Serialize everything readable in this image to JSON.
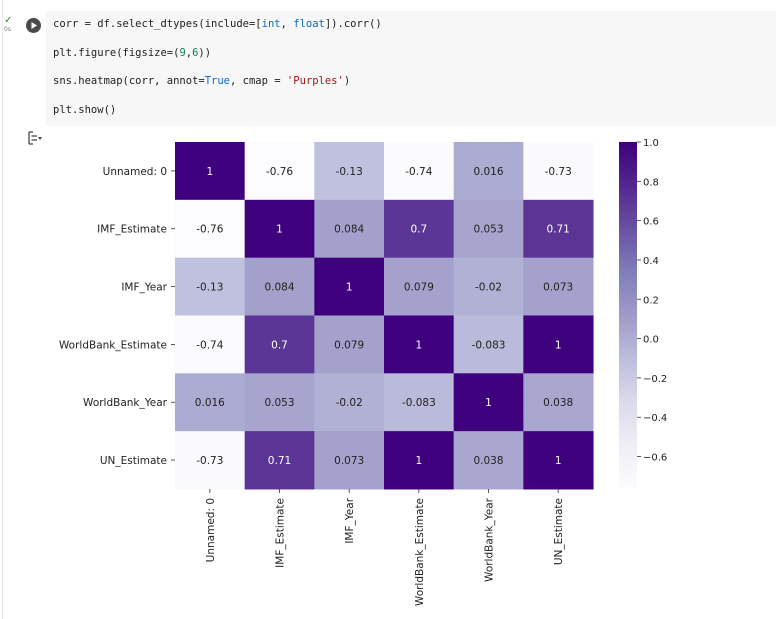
{
  "cell": {
    "status": "✓",
    "elapsed": "0s",
    "code": [
      [
        {
          "t": "corr = df.select_dtypes(include=["
        },
        {
          "t": "int",
          "c": "kw"
        },
        {
          "t": ", "
        },
        {
          "t": "float",
          "c": "kw"
        },
        {
          "t": "]).corr()"
        }
      ],
      [
        {
          "t": "plt.figure(figsize=("
        },
        {
          "t": "9",
          "c": "num"
        },
        {
          "t": ","
        },
        {
          "t": "6",
          "c": "num"
        },
        {
          "t": "))"
        }
      ],
      [
        {
          "t": "sns.heatmap(corr, annot="
        },
        {
          "t": "True",
          "c": "kw"
        },
        {
          "t": ", cmap = "
        },
        {
          "t": "'Purples'",
          "c": "str"
        },
        {
          "t": ")"
        }
      ],
      [
        {
          "t": "plt.show()"
        }
      ]
    ]
  },
  "output_toggle_icon": "output-collapse-icon",
  "chart_data": {
    "type": "heatmap",
    "cmap": "Purples",
    "labels": [
      "Unnamed: 0",
      "IMF_Estimate",
      "IMF_Year",
      "WorldBank_Estimate",
      "WorldBank_Year",
      "UN_Estimate"
    ],
    "values": [
      [
        1,
        -0.76,
        -0.13,
        -0.74,
        0.016,
        -0.73
      ],
      [
        -0.76,
        1,
        0.084,
        0.7,
        0.053,
        0.71
      ],
      [
        -0.13,
        0.084,
        1,
        0.079,
        -0.02,
        0.073
      ],
      [
        -0.74,
        0.7,
        0.079,
        1,
        -0.083,
        1
      ],
      [
        0.016,
        0.053,
        -0.02,
        -0.083,
        1,
        0.038
      ],
      [
        -0.73,
        0.71,
        0.073,
        1,
        0.038,
        1
      ]
    ],
    "annotations": [
      [
        "1",
        "-0.76",
        "-0.13",
        "-0.74",
        "0.016",
        "-0.73"
      ],
      [
        "-0.76",
        "1",
        "0.084",
        "0.7",
        "0.053",
        "0.71"
      ],
      [
        "-0.13",
        "0.084",
        "1",
        "0.079",
        "-0.02",
        "0.073"
      ],
      [
        "-0.74",
        "0.7",
        "0.079",
        "1",
        "-0.083",
        "1"
      ],
      [
        "0.016",
        "0.053",
        "-0.02",
        "-0.083",
        "1",
        "0.038"
      ],
      [
        "-0.73",
        "0.71",
        "0.073",
        "1",
        "0.038",
        "1"
      ]
    ],
    "vmin": -0.76,
    "vmax": 1,
    "colorbar_ticks": [
      "1.0",
      "0.8",
      "0.6",
      "0.4",
      "0.2",
      "0.0",
      "−0.2",
      "−0.4",
      "−0.6"
    ],
    "colorbar_tick_values": [
      1.0,
      0.8,
      0.6,
      0.4,
      0.2,
      0.0,
      -0.2,
      -0.4,
      -0.6
    ]
  }
}
